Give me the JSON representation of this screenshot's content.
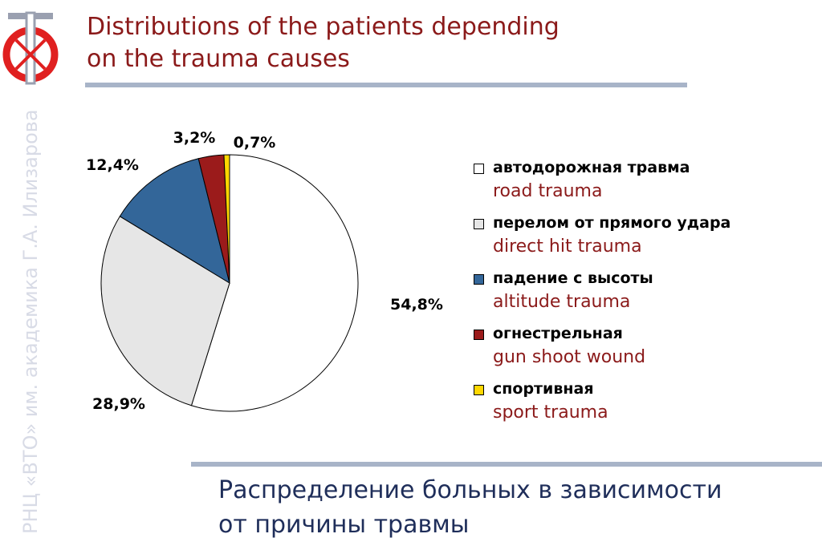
{
  "title": {
    "line1": "Distributions of the patients depending",
    "line2": "on the trauma causes"
  },
  "subtitle": {
    "line1": "Распределение больных в зависимости",
    "line2": "от причины травмы"
  },
  "sidebar_text": "РНЦ «ВТО» им. академика Г.А. Илизарова",
  "colors": {
    "title": "#8b1a1a",
    "subtitle": "#1f2e5a",
    "rule": "#a8b4c8",
    "logo_red": "#e02020",
    "logo_gray": "#9aa0b0"
  },
  "chart_data": {
    "type": "pie",
    "title": "",
    "start_angle_deg": 0,
    "direction": "clockwise",
    "slices": [
      {
        "label_ru": "автодорожная травма",
        "label_en": "road trauma",
        "value": 54.8,
        "label": "54,8%",
        "color": "#ffffff"
      },
      {
        "label_ru": "перелом от прямого удара",
        "label_en": "direct hit trauma",
        "value": 28.9,
        "label": "28,9%",
        "color": "#e6e6e6"
      },
      {
        "label_ru": "падение с высоты",
        "label_en": "altitude trauma",
        "value": 12.4,
        "label": "12,4%",
        "color": "#336699"
      },
      {
        "label_ru": "огнестрельная",
        "label_en": "gun shoot wound",
        "value": 3.2,
        "label": "3,2%",
        "color": "#9b1b1b"
      },
      {
        "label_ru": "спортивная",
        "label_en": "sport trauma",
        "value": 0.7,
        "label": "0,7%",
        "color": "#ffd700"
      }
    ],
    "legend_position": "right"
  }
}
